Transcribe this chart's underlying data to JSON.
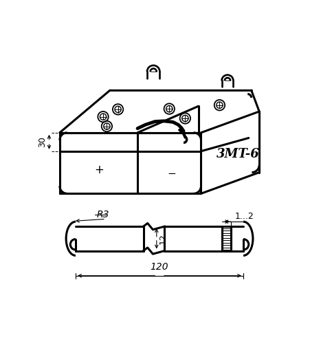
{
  "bg_color": "#ffffff",
  "line_color": "#000000",
  "figsize": [
    4.52,
    5.16
  ],
  "dpi": 100,
  "battery_label": "3MT-6",
  "dim_30": "30",
  "dim_R3": "R3",
  "dim_12": "12",
  "dim_120": "120",
  "dim_1_2": "1...2",
  "lw_thick": 2.2,
  "lw_thin": 1.0,
  "lw_dim": 0.8
}
